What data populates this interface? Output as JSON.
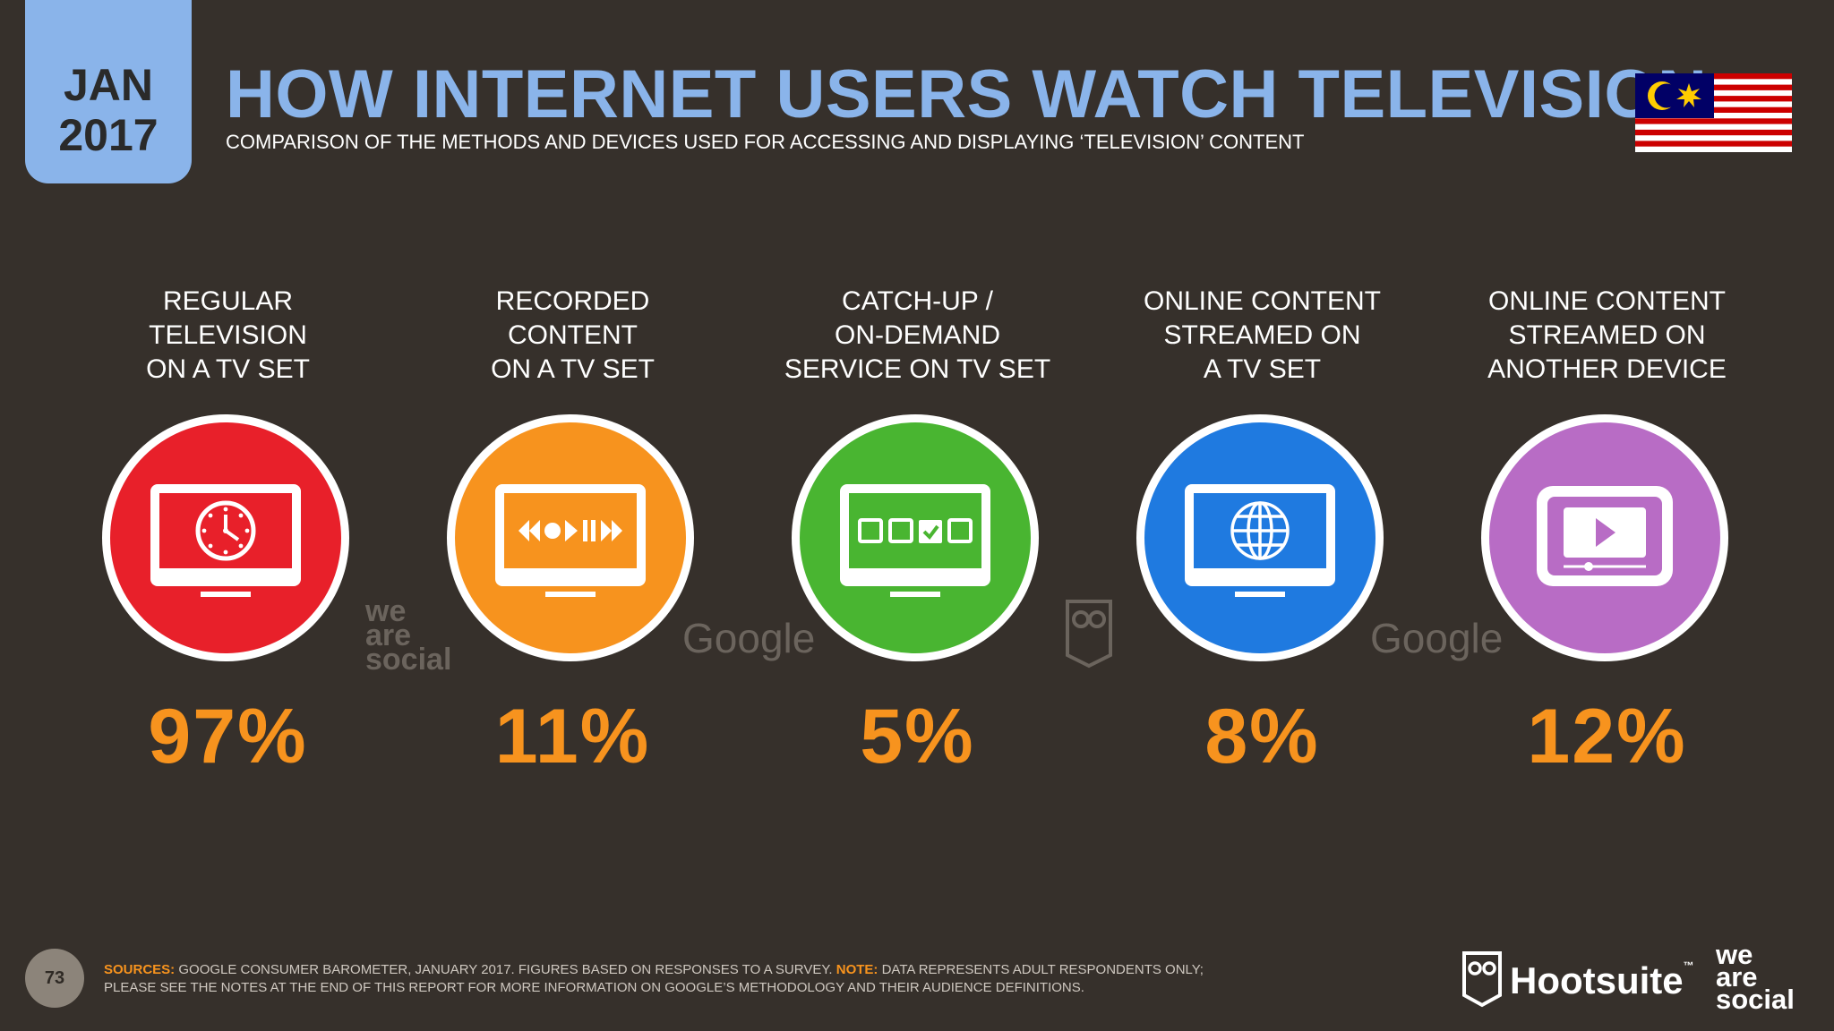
{
  "badge": {
    "month": "JAN",
    "year": "2017"
  },
  "title": "HOW INTERNET USERS WATCH TELEVISION",
  "subtitle": "COMPARISON OF THE METHODS AND DEVICES USED FOR ACCESSING AND DISPLAYING ‘TELEVISION’ CONTENT",
  "categories": [
    {
      "label": "REGULAR\nTELEVISION\nON A TV SET",
      "value": "97%",
      "color": "#e8202a",
      "icon": "tv-clock-icon"
    },
    {
      "label": "RECORDED\nCONTENT\nON A TV SET",
      "value": "11%",
      "color": "#f7931e",
      "icon": "tv-playback-icon"
    },
    {
      "label": "CATCH-UP /\nON-DEMAND\nSERVICE ON TV SET",
      "value": "5%",
      "color": "#49b531",
      "icon": "tv-checkbox-icon"
    },
    {
      "label": "ONLINE CONTENT\nSTREAMED ON\nA TV SET",
      "value": "8%",
      "color": "#1f7ae0",
      "icon": "tv-globe-icon"
    },
    {
      "label": "ONLINE CONTENT\nSTREAMED ON\nANOTHER DEVICE",
      "value": "12%",
      "color": "#b86cc5",
      "icon": "device-play-icon"
    }
  ],
  "watermarks": {
    "was": [
      "we",
      "are",
      "social"
    ],
    "google": "Google"
  },
  "footer": {
    "page_number": "73",
    "sources_label": "SOURCES:",
    "sources_text": " GOOGLE CONSUMER BAROMETER, JANUARY 2017. FIGURES BASED ON RESPONSES TO A SURVEY. ",
    "note_label": "NOTE:",
    "note_text": " DATA REPRESENTS ADULT RESPONDENTS ONLY; PLEASE SEE THE NOTES AT THE END OF THIS REPORT FOR MORE INFORMATION ON GOOGLE’S METHODOLOGY AND THEIR AUDIENCE DEFINITIONS.",
    "brand": "Hootsuite",
    "brand_tm": "™",
    "was_logo": [
      "we",
      "are",
      "social"
    ]
  }
}
